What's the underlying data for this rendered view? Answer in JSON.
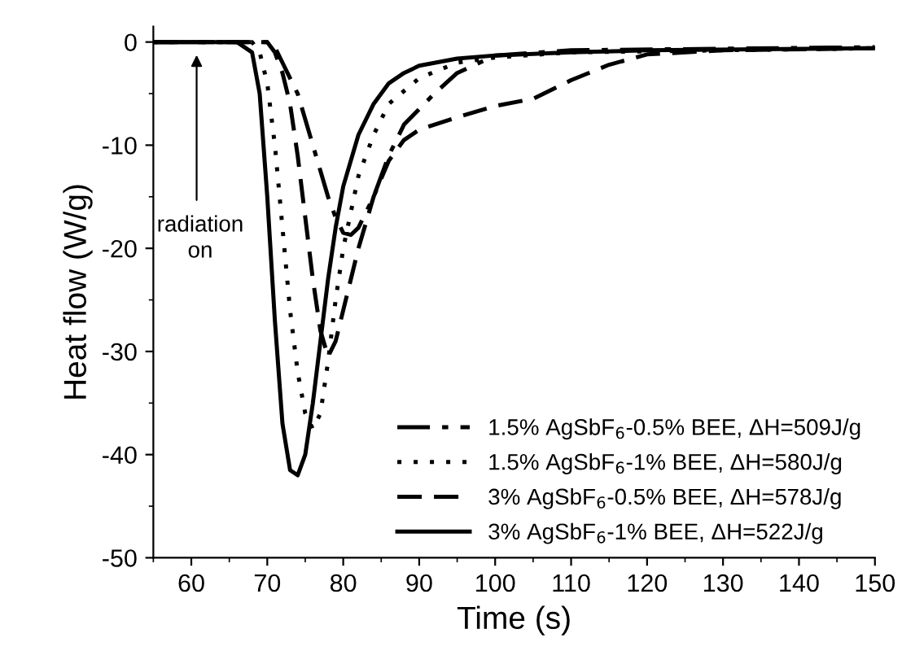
{
  "chart_data": {
    "type": "line",
    "xlabel": "Time (s)",
    "ylabel": "Heat flow (W/g)",
    "xlim": [
      55,
      150
    ],
    "ylim": [
      -50,
      1.5
    ],
    "xticks": [
      60,
      70,
      80,
      90,
      100,
      110,
      120,
      130,
      140,
      150
    ],
    "yticks": [
      -50,
      -40,
      -30,
      -20,
      -10,
      0
    ],
    "grid": false,
    "legend": "bottom right",
    "marker": "none",
    "annotations": [
      "radiation\non"
    ],
    "series": [
      {
        "name": "1.5% AgSbF$_{6}$-0.5% BEE, ΔH=509J/g",
        "color": "#000000",
        "line_style": "dashdot",
        "x": [
          55,
          70,
          71,
          72,
          74,
          76,
          78,
          79,
          80,
          81,
          82,
          84,
          86,
          88,
          90,
          92,
          95,
          100,
          110,
          150
        ],
        "values": [
          0,
          0,
          -0.5,
          -2,
          -5,
          -10,
          -15,
          -17,
          -18.5,
          -18.7,
          -18,
          -15,
          -11,
          -8,
          -6.5,
          -5,
          -3,
          -1.3,
          -0.8,
          -0.5
        ]
      },
      {
        "name": "1.5% AgSbF$_{6}$-1% BEE, ΔH=580J/g",
        "color": "#000000",
        "line_style": "dotted",
        "x": [
          55,
          68,
          69,
          70,
          71,
          72,
          73,
          74,
          75,
          76,
          77,
          78,
          79,
          80,
          82,
          84,
          86,
          90,
          95,
          100,
          110,
          150
        ],
        "values": [
          0,
          0,
          -1,
          -4,
          -10,
          -18,
          -26,
          -32,
          -36,
          -37.5,
          -36,
          -31,
          -25,
          -20,
          -13,
          -9,
          -6,
          -3.5,
          -2,
          -1.5,
          -1,
          -0.6
        ]
      },
      {
        "name": "3% AgSbF$_{6}$-0.5% BEE, ΔH=578J/g",
        "color": "#000000",
        "line_style": "dashed",
        "x": [
          55,
          70,
          71,
          72,
          73,
          74,
          75,
          76,
          77,
          78,
          79,
          80,
          82,
          84,
          86,
          88,
          90,
          95,
          100,
          105,
          110,
          115,
          120,
          130,
          150
        ],
        "values": [
          0,
          0,
          -1,
          -3,
          -6,
          -11,
          -17,
          -23,
          -28,
          -30.5,
          -29,
          -26,
          -20,
          -15,
          -11.5,
          -9.5,
          -8.5,
          -7.3,
          -6.2,
          -5.5,
          -3.7,
          -2.2,
          -1.2,
          -0.8,
          -0.6
        ]
      },
      {
        "name": "3% AgSbF$_{6}$-1% BEE, ΔH=522J/g",
        "color": "#000000",
        "line_style": "solid",
        "x": [
          55,
          66,
          68,
          69,
          70,
          71,
          72,
          73,
          74,
          75,
          76,
          77,
          78,
          79,
          80,
          82,
          84,
          86,
          88,
          90,
          95,
          100,
          110,
          120,
          150
        ],
        "values": [
          0,
          0,
          -1,
          -5,
          -15,
          -27,
          -37,
          -41.5,
          -42,
          -40,
          -35,
          -29,
          -23,
          -18,
          -14,
          -9,
          -6,
          -4,
          -3,
          -2.3,
          -1.6,
          -1.3,
          -1,
          -0.8,
          -0.6
        ]
      }
    ]
  }
}
